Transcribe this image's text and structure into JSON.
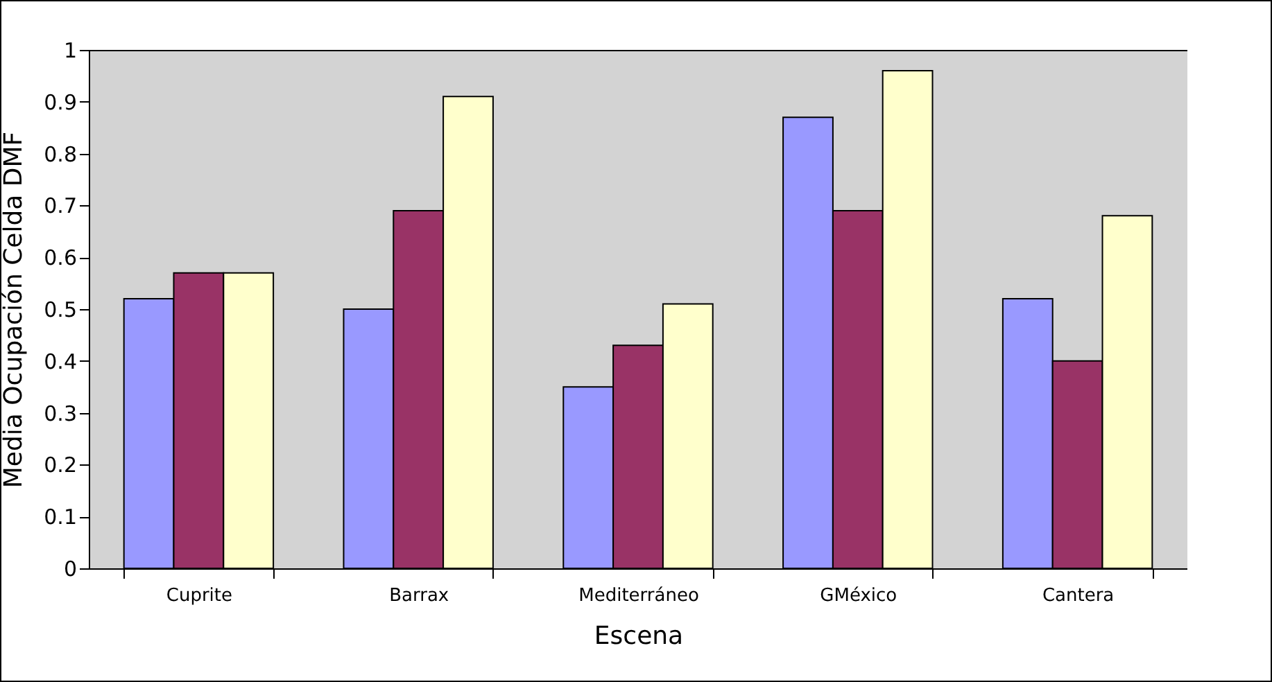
{
  "chart_data": {
    "type": "bar",
    "xlabel": "Escena",
    "ylabel": "Media Ocupación Celda DMF",
    "categories": [
      "Cuprite",
      "Barrax",
      "Mediterráneo",
      "GMéxico",
      "Cantera"
    ],
    "series": [
      {
        "color": "#9999ff",
        "values": [
          0.52,
          0.5,
          0.35,
          0.87,
          0.52
        ]
      },
      {
        "color": "#993366",
        "values": [
          0.57,
          0.69,
          0.43,
          0.69,
          0.4
        ]
      },
      {
        "color": "#ffffcc",
        "values": [
          0.57,
          0.91,
          0.51,
          0.96,
          0.68
        ]
      }
    ],
    "ylim": [
      0,
      1
    ],
    "yticks": [
      0,
      0.1,
      0.2,
      0.3,
      0.4,
      0.5,
      0.6,
      0.7,
      0.8,
      0.9,
      1
    ],
    "grid": false,
    "legend": false
  }
}
